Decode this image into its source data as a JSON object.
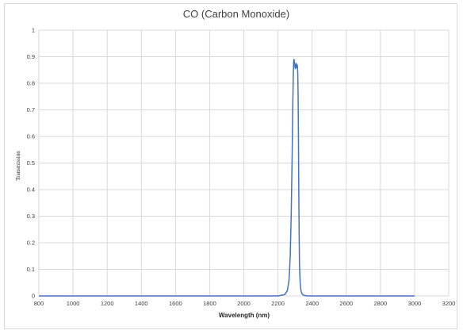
{
  "chart_data": {
    "type": "line",
    "title": "CO (Carbon Monoxide)",
    "xlabel": "Wavelength (nm)",
    "ylabel": "Transmission",
    "xlim": [
      800,
      3200
    ],
    "ylim": [
      0,
      1
    ],
    "xticks": [
      "800",
      "1000",
      "1200",
      "1400",
      "1600",
      "1800",
      "2000",
      "2200",
      "2400",
      "2600",
      "2800",
      "3000",
      "3200"
    ],
    "yticks": [
      "0",
      "0.1",
      "0.2",
      "0.3",
      "0.4",
      "0.5",
      "0.6",
      "0.7",
      "0.8",
      "0.9",
      "1"
    ],
    "grid": true,
    "legend": "none",
    "series": [
      {
        "color": "#4472c4",
        "x": [
          800,
          1000,
          1200,
          1400,
          1600,
          1800,
          2000,
          2100,
          2200,
          2240,
          2255,
          2265,
          2272,
          2278,
          2283,
          2287,
          2290,
          2292,
          2294,
          2296,
          2298,
          2300,
          2302,
          2304,
          2306,
          2308,
          2310,
          2312,
          2314,
          2316,
          2318,
          2320,
          2322,
          2324,
          2326,
          2330,
          2335,
          2340,
          2350,
          2370,
          2400,
          2500,
          2600,
          2700,
          2800,
          2900,
          3000
        ],
        "y": [
          0,
          0,
          0,
          0,
          0,
          0,
          0,
          0,
          0,
          0.005,
          0.02,
          0.06,
          0.15,
          0.32,
          0.52,
          0.72,
          0.83,
          0.88,
          0.89,
          0.885,
          0.87,
          0.86,
          0.855,
          0.86,
          0.875,
          0.87,
          0.86,
          0.87,
          0.865,
          0.84,
          0.76,
          0.6,
          0.4,
          0.24,
          0.12,
          0.05,
          0.02,
          0.008,
          0.003,
          0,
          0,
          0,
          0,
          0,
          0,
          0,
          0
        ]
      }
    ]
  }
}
